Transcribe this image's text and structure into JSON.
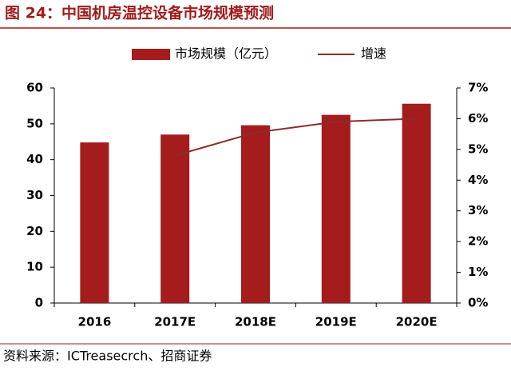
{
  "chart_data": {
    "type": "bar_line",
    "title": "图 24：中国机房温控设备市场规模预测",
    "source": "资料来源：ICTreasecrch、招商证券",
    "categories": [
      "2016",
      "2017E",
      "2018E",
      "2019E",
      "2020E"
    ],
    "series": [
      {
        "name": "市场规模（亿元）",
        "type": "bar",
        "color": "#a51c1c",
        "values": [
          44.8,
          47.0,
          49.6,
          52.5,
          55.6
        ]
      },
      {
        "name": "增速",
        "type": "line",
        "axis": "y2",
        "color": "#8b2c2c",
        "values": [
          null,
          4.8,
          5.55,
          5.9,
          6.0
        ]
      }
    ],
    "ylim": [
      0,
      60
    ],
    "yticks": [
      0,
      10,
      20,
      30,
      40,
      50,
      60
    ],
    "y2lim": [
      0,
      7
    ],
    "y2ticks": [
      {
        "value": 0,
        "label": "0%"
      },
      {
        "value": 1,
        "label": "1%"
      },
      {
        "value": 2,
        "label": "2%"
      },
      {
        "value": 3,
        "label": "3%"
      },
      {
        "value": 4,
        "label": "4%"
      },
      {
        "value": 5,
        "label": "5%"
      },
      {
        "value": 6,
        "label": "6%"
      },
      {
        "value": 7,
        "label": "7%"
      }
    ],
    "legend": "top",
    "grid": false
  }
}
